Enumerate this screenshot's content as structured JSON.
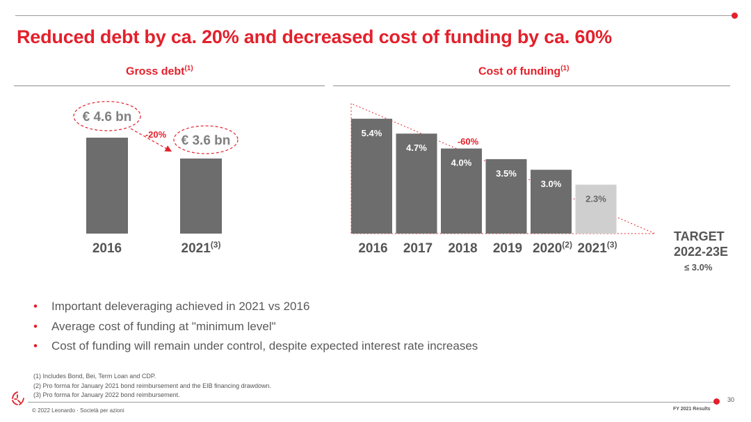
{
  "slide": {
    "title": "Reduced debt by ca. 20% and decreased cost of funding by ca. 60%",
    "page_number": "30",
    "footer_left": "© 2022 Leonardo · Società per azioni",
    "footer_right": "FY 2021 Results"
  },
  "colors": {
    "accent": "#e3202b",
    "bar_dark": "#6d6d6d",
    "bar_light": "#cfcfcf"
  },
  "gross_debt": {
    "heading": "Gross debt",
    "heading_sup": "(1)",
    "change_label": "-20%",
    "callouts": [
      "€ 4.6 bn",
      "€ 3.6 bn"
    ]
  },
  "cost_of_funding": {
    "heading": "Cost of funding",
    "heading_sup": "(1)",
    "change_label": "-60%",
    "target_line1": "TARGET",
    "target_line2": "2022-23E",
    "target_value": "≤ 3.0%"
  },
  "chart_data": [
    {
      "type": "bar",
      "title": "Gross debt",
      "categories": [
        "2016",
        "2021"
      ],
      "category_sups": [
        "",
        "(3)"
      ],
      "values": [
        4.6,
        3.6
      ],
      "unit": "€ bn",
      "annotation": "-20%"
    },
    {
      "type": "bar",
      "title": "Cost of funding",
      "categories": [
        "2016",
        "2017",
        "2018",
        "2019",
        "2020",
        "2021"
      ],
      "category_sups": [
        "",
        "",
        "",
        "",
        "(2)",
        "(3)"
      ],
      "values": [
        5.4,
        4.7,
        4.0,
        3.5,
        3.0,
        2.3
      ],
      "value_labels": [
        "5.4%",
        "4.7%",
        "4.0%",
        "3.5%",
        "3.0%",
        "2.3%"
      ],
      "unit": "%",
      "annotation": "-60%"
    }
  ],
  "bullets": [
    "Important deleveraging achieved in 2021 vs 2016",
    "Average cost of funding at \"minimum level\"",
    "Cost of funding will remain under control, despite expected interest rate increases"
  ],
  "footnotes": [
    "(1) Includes Bond, Bei, Term Loan and CDP.",
    "(2) Pro forma for January 2021 bond reimbursement and the EIB financing drawdown.",
    "(3) Pro forma for January 2022 bond reimbursement."
  ]
}
